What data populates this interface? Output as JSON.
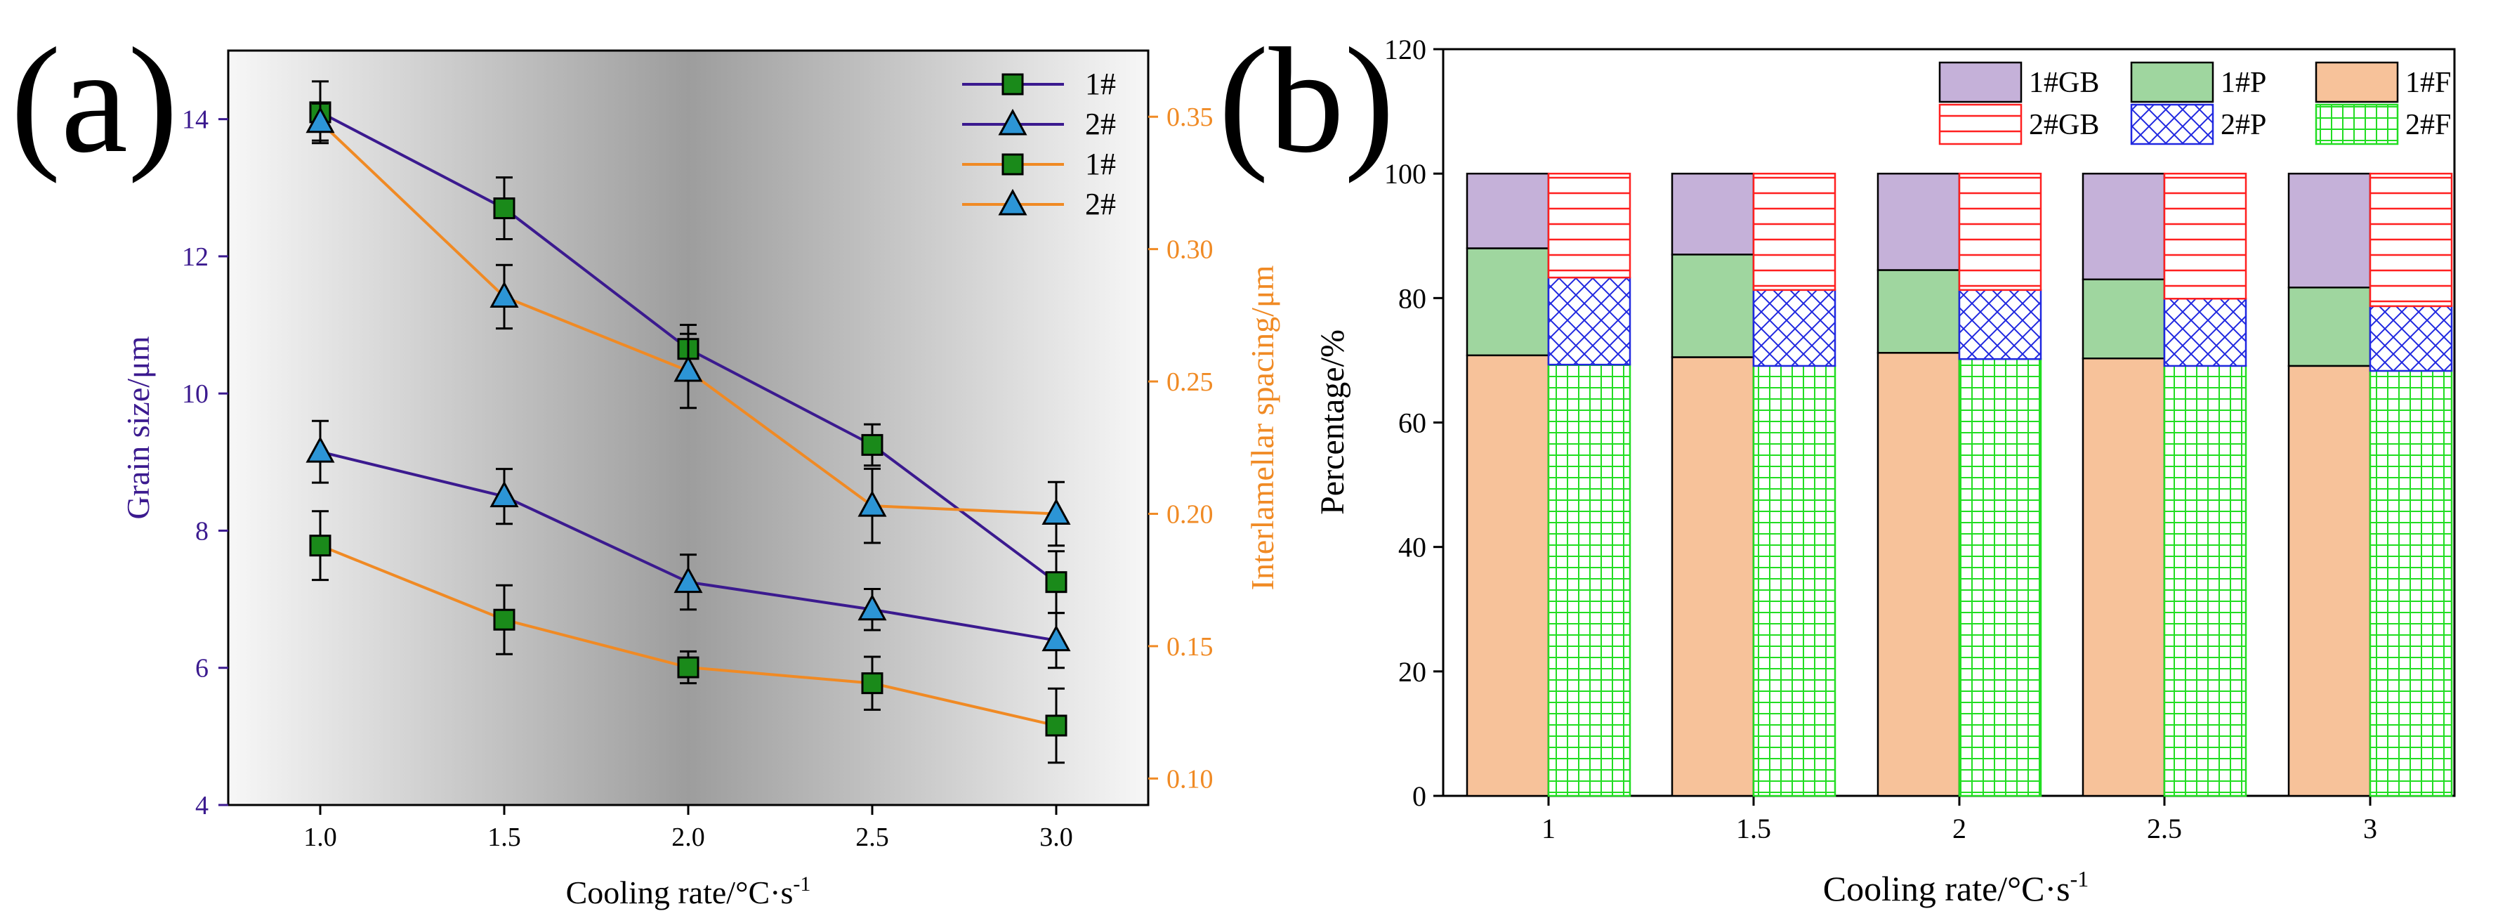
{
  "chart_data": [
    {
      "panel_label": "(a)",
      "type": "line",
      "xlabel": "Cooling rate/°C·s",
      "xlabel_sup": "-1",
      "ylabel_left": "Grain size/μm",
      "ylabel_right": "Interlamellar spacing/μm",
      "x": [
        1.0,
        1.5,
        2.0,
        2.5,
        3.0
      ],
      "x_ticks": [
        "1.0",
        "1.5",
        "2.0",
        "2.5",
        "3.0"
      ],
      "xlim": [
        0.75,
        3.25
      ],
      "ylim_left": [
        4,
        15
      ],
      "ylim_right": [
        0.09,
        0.375
      ],
      "y_left_ticks": [
        4,
        6,
        8,
        10,
        12,
        14
      ],
      "y_right_ticks": [
        "0.10",
        "0.15",
        "0.20",
        "0.25",
        "0.30",
        "0.35"
      ],
      "series": [
        {
          "name": "1#",
          "axis": "left",
          "marker": "square",
          "color": "#3b1a8f",
          "values": [
            14.1,
            12.7,
            10.65,
            9.25,
            7.25
          ],
          "errors": [
            0.45,
            0.45,
            0.35,
            0.3,
            0.45
          ]
        },
        {
          "name": "2#",
          "axis": "left",
          "marker": "triangle",
          "color": "#3b1a8f",
          "values": [
            9.15,
            8.5,
            7.25,
            6.85,
            6.4
          ],
          "errors": [
            0.45,
            0.4,
            0.4,
            0.3,
            0.4
          ]
        },
        {
          "name": "1#",
          "axis": "right",
          "marker": "square",
          "color": "#f08a24",
          "values": [
            0.188,
            0.16,
            0.142,
            0.136,
            0.12
          ],
          "errors": [
            0.013,
            0.013,
            0.006,
            0.01,
            0.014
          ]
        },
        {
          "name": "2#",
          "axis": "right",
          "marker": "triangle",
          "color": "#f08a24",
          "values": [
            0.348,
            0.282,
            0.254,
            0.203,
            0.2
          ],
          "errors": [
            0.007,
            0.012,
            0.014,
            0.014,
            0.012
          ]
        }
      ]
    },
    {
      "panel_label": "(b)",
      "type": "bar",
      "xlabel": "Cooling rate/°C·s",
      "xlabel_sup": "-1",
      "ylabel": "Percentage/%",
      "ylim": [
        0,
        120
      ],
      "y_ticks": [
        0,
        20,
        40,
        60,
        80,
        100,
        120
      ],
      "categories": [
        "1",
        "1.5",
        "2",
        "2.5",
        "3"
      ],
      "stacked": true,
      "groups": [
        {
          "name": "1#",
          "segments": [
            {
              "name": "1#F",
              "values": [
                70.8,
                70.5,
                71.2,
                70.3,
                69.1
              ]
            },
            {
              "name": "1#P",
              "values": [
                17.2,
                16.5,
                13.3,
                12.7,
                12.6
              ]
            },
            {
              "name": "1#GB",
              "values": [
                12.0,
                13.0,
                15.5,
                17.0,
                18.3
              ]
            }
          ]
        },
        {
          "name": "2#",
          "segments": [
            {
              "name": "2#F",
              "values": [
                69.3,
                69.1,
                70.2,
                69.1,
                68.3
              ]
            },
            {
              "name": "2#P",
              "values": [
                14.0,
                12.2,
                11.1,
                10.8,
                10.4
              ]
            },
            {
              "name": "2#GB",
              "values": [
                16.7,
                18.7,
                18.7,
                20.1,
                21.3
              ]
            }
          ]
        }
      ],
      "legend": [
        {
          "name": "1#GB",
          "style": "gb1"
        },
        {
          "name": "1#P",
          "style": "p1"
        },
        {
          "name": "1#F",
          "style": "f1"
        },
        {
          "name": "2#GB",
          "style": "gb2"
        },
        {
          "name": "2#P",
          "style": "p2"
        },
        {
          "name": "2#F",
          "style": "f2"
        }
      ]
    }
  ]
}
